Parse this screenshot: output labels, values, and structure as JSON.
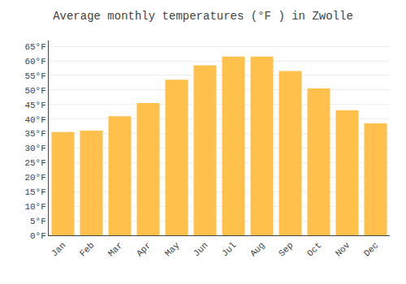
{
  "chart_data": {
    "type": "bar",
    "title": "Average monthly temperatures (°F ) in Zwolle",
    "categories": [
      "Jan",
      "Feb",
      "Mar",
      "Apr",
      "May",
      "Jun",
      "Jul",
      "Aug",
      "Sep",
      "Oct",
      "Nov",
      "Dec"
    ],
    "values": [
      35.5,
      36.0,
      41.0,
      45.5,
      53.5,
      58.5,
      61.5,
      61.5,
      56.5,
      50.5,
      43.0,
      38.5
    ],
    "color": "#FFC04C",
    "ylim": [
      0,
      67
    ],
    "yticks": [
      {
        "value": 0,
        "label": "0°F"
      },
      {
        "value": 5,
        "label": "5°F"
      },
      {
        "value": 10,
        "label": "10°F"
      },
      {
        "value": 15,
        "label": "15°F"
      },
      {
        "value": 20,
        "label": "20°F"
      },
      {
        "value": 25,
        "label": "25°F"
      },
      {
        "value": 30,
        "label": "30°F"
      },
      {
        "value": 35,
        "label": "35°F"
      },
      {
        "value": 40,
        "label": "40°F"
      },
      {
        "value": 45,
        "label": "45°F"
      },
      {
        "value": 50,
        "label": "50°F"
      },
      {
        "value": 55,
        "label": "55°F"
      },
      {
        "value": 60,
        "label": "60°F"
      },
      {
        "value": 65,
        "label": "65°F"
      }
    ],
    "grid": true
  }
}
